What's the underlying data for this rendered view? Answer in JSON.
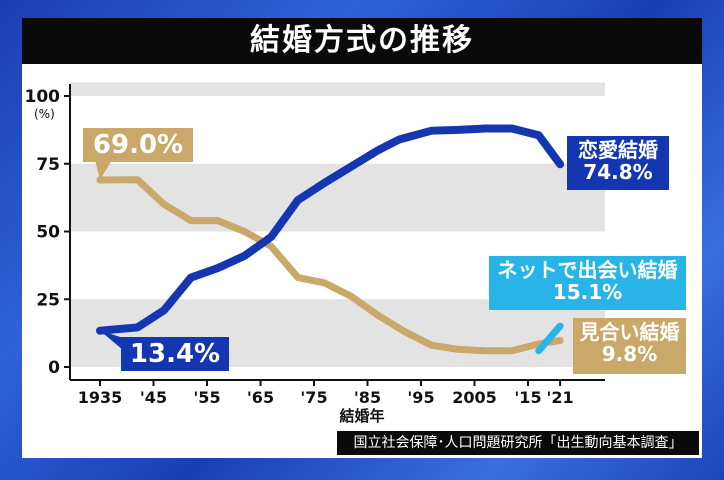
{
  "title": "結婚方式の推移",
  "source": "国立社会保障･人口問題研究所「出生動向基本調査」",
  "chart_data": {
    "type": "line",
    "title": "結婚方式の推移",
    "xlabel": "結婚年",
    "ylabel": "(%)",
    "ylim": [
      0,
      100
    ],
    "yticks": [
      0,
      25,
      50,
      75,
      100
    ],
    "xticks": [
      {
        "v": 1935,
        "t": "1935"
      },
      {
        "v": 1945,
        "t": "'45"
      },
      {
        "v": 1955,
        "t": "'55"
      },
      {
        "v": 1965,
        "t": "'65"
      },
      {
        "v": 1975,
        "t": "'75"
      },
      {
        "v": 1985,
        "t": "'85"
      },
      {
        "v": 1995,
        "t": "'95"
      },
      {
        "v": 2005,
        "t": "2005"
      },
      {
        "v": 2015,
        "t": "'15"
      },
      {
        "v": 2021,
        "t": "'21"
      }
    ],
    "grid": "alternating horizontal bands",
    "series": [
      {
        "name": "恋愛結婚",
        "color": "#1436b0",
        "end_label": "74.8%",
        "start_label": "13.4%",
        "x": [
          1935,
          1942,
          1947,
          1952,
          1957,
          1962,
          1967,
          1972,
          1977,
          1982,
          1987,
          1991,
          1997,
          2002,
          2007,
          2012,
          2017,
          2021
        ],
        "values": [
          13.4,
          14.6,
          21,
          33,
          36.5,
          41,
          48,
          61.6,
          68,
          74,
          80,
          84,
          87.2,
          87.5,
          88,
          88,
          85.5,
          74.8
        ]
      },
      {
        "name": "見合い結婚",
        "color": "#c9a86a",
        "end_label": "9.8%",
        "start_label": "69.0%",
        "x": [
          1935,
          1942,
          1947,
          1952,
          1957,
          1962,
          1967,
          1972,
          1977,
          1982,
          1987,
          1992,
          1997,
          2002,
          2007,
          2012,
          2017,
          2021
        ],
        "values": [
          69.0,
          69.1,
          60,
          54,
          54,
          50,
          44.5,
          33,
          31,
          26,
          19,
          13,
          8,
          6.5,
          6,
          6,
          8.5,
          9.8
        ]
      },
      {
        "name": "ネットで出会い結婚",
        "color": "#29b4e8",
        "end_label": "15.1%",
        "x": [
          2017,
          2021
        ],
        "values": [
          6,
          15.1
        ]
      }
    ]
  }
}
